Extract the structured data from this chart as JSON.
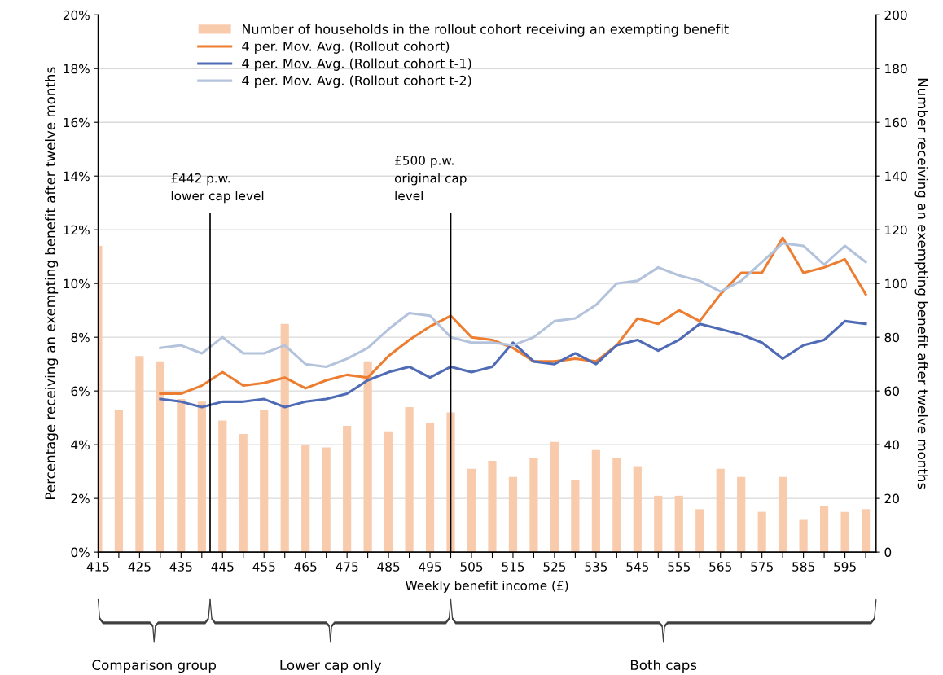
{
  "chart_data": {
    "type": "line",
    "xlabel": "Weekly benefit income (£)",
    "ylabel": "Percentage receiving an exempting benefit after twelve months",
    "y2label": "Number receiving an exempting benefit after twelve months",
    "x": [
      415,
      420,
      425,
      430,
      435,
      440,
      445,
      450,
      455,
      460,
      465,
      470,
      475,
      480,
      485,
      490,
      495,
      500,
      505,
      510,
      515,
      520,
      525,
      530,
      535,
      540,
      545,
      550,
      555,
      560,
      565,
      570,
      575,
      580,
      585,
      590,
      595,
      600
    ],
    "series": [
      {
        "name": "Number of households in the rollout cohort receiving an exempting benefit",
        "type": "bar",
        "axis": "y2",
        "color": "#f8cbad",
        "values": [
          114,
          53,
          73,
          71,
          57,
          56,
          49,
          44,
          53,
          85,
          40,
          39,
          47,
          71,
          45,
          54,
          48,
          52,
          31,
          34,
          28,
          35,
          41,
          27,
          38,
          35,
          32,
          21,
          21,
          16,
          31,
          28,
          15,
          28,
          12,
          17,
          15,
          16
        ]
      },
      {
        "name": "4 per. Mov. Avg. (Rollout cohort)",
        "color": "#ed7d31",
        "values": [
          null,
          null,
          null,
          5.9,
          5.9,
          6.2,
          6.7,
          6.2,
          6.3,
          6.5,
          6.1,
          6.4,
          6.6,
          6.5,
          7.3,
          7.9,
          8.4,
          8.8,
          8.0,
          7.9,
          7.6,
          7.1,
          7.1,
          7.2,
          7.1,
          7.7,
          8.7,
          8.5,
          9.0,
          8.6,
          9.6,
          10.4,
          10.4,
          11.7,
          10.4,
          10.6,
          10.9,
          9.6
        ]
      },
      {
        "name": "4 per. Mov. Avg. (Rollout cohort t-1)",
        "color": "#4f6bb5",
        "values": [
          null,
          null,
          null,
          5.7,
          5.6,
          5.4,
          5.6,
          5.6,
          5.7,
          5.4,
          5.6,
          5.7,
          5.9,
          6.4,
          6.7,
          6.9,
          6.5,
          6.9,
          6.7,
          6.9,
          7.8,
          7.1,
          7.0,
          7.4,
          7.0,
          7.7,
          7.9,
          7.5,
          7.9,
          8.5,
          8.3,
          8.1,
          7.8,
          7.2,
          7.7,
          7.9,
          8.6,
          8.5
        ]
      },
      {
        "name": "4 per. Mov. Avg. (Rollout cohort t-2)",
        "color": "#b4c3dc",
        "values": [
          null,
          null,
          null,
          7.6,
          7.7,
          7.4,
          8.0,
          7.4,
          7.4,
          7.7,
          7.0,
          6.9,
          7.2,
          7.6,
          8.3,
          8.9,
          8.8,
          8.0,
          7.8,
          7.8,
          7.7,
          8.0,
          8.6,
          8.7,
          9.2,
          10.0,
          10.1,
          10.6,
          10.3,
          10.1,
          9.7,
          10.1,
          10.8,
          11.5,
          11.4,
          10.7,
          11.4,
          10.8
        ]
      }
    ],
    "xlim": [
      415,
      602.5
    ],
    "xticks": [
      415,
      {
        "value": 420,
        "label": null
      },
      425,
      {
        "value": 430,
        "label": null
      },
      435,
      {
        "value": 440,
        "label": null
      },
      445,
      {
        "value": 450,
        "label": null
      },
      455,
      {
        "value": 460,
        "label": null
      },
      465,
      {
        "value": 470,
        "label": null
      },
      475,
      {
        "value": 480,
        "label": null
      },
      485,
      {
        "value": 490,
        "label": null
      },
      495,
      {
        "value": 500,
        "label": null
      },
      505,
      {
        "value": 510,
        "label": null
      },
      515,
      {
        "value": 520,
        "label": null
      },
      525,
      {
        "value": 530,
        "label": null
      },
      535,
      {
        "value": 540,
        "label": null
      },
      545,
      {
        "value": 550,
        "label": null
      },
      555,
      {
        "value": 560,
        "label": null
      },
      565,
      {
        "value": 570,
        "label": null
      },
      575,
      {
        "value": 580,
        "label": null
      },
      585,
      {
        "value": 590,
        "label": null
      },
      595,
      {
        "value": 600,
        "label": null
      }
    ],
    "ylim": [
      0,
      20
    ],
    "yticks": [
      {
        "value": 0,
        "label": "0%"
      },
      {
        "value": 2,
        "label": "2%"
      },
      {
        "value": 4,
        "label": "4%"
      },
      {
        "value": 6,
        "label": "6%"
      },
      {
        "value": 8,
        "label": "8%"
      },
      {
        "value": 10,
        "label": "10%"
      },
      {
        "value": 12,
        "label": "12%"
      },
      {
        "value": 14,
        "label": "14%"
      },
      {
        "value": 16,
        "label": "16%"
      },
      {
        "value": 18,
        "label": "18%"
      },
      {
        "value": 20,
        "label": "20%"
      }
    ],
    "y2lim": [
      0,
      200
    ],
    "y2ticks": [
      0,
      20,
      40,
      60,
      80,
      100,
      120,
      140,
      160,
      180,
      200
    ],
    "ref_lines": [
      {
        "axis": "x",
        "value": 442,
        "label": "£442 p.w.\nlower cap level",
        "color": "#000000"
      },
      {
        "axis": "x",
        "value": 500,
        "label": "£500 p.w.\noriginal cap\nlevel",
        "color": "#000000"
      }
    ],
    "annotations": [
      "Comparison group",
      "Lower cap only",
      "Both caps"
    ],
    "grid": "y",
    "legend": "top",
    "marker": "none",
    "line_style": "solid"
  }
}
